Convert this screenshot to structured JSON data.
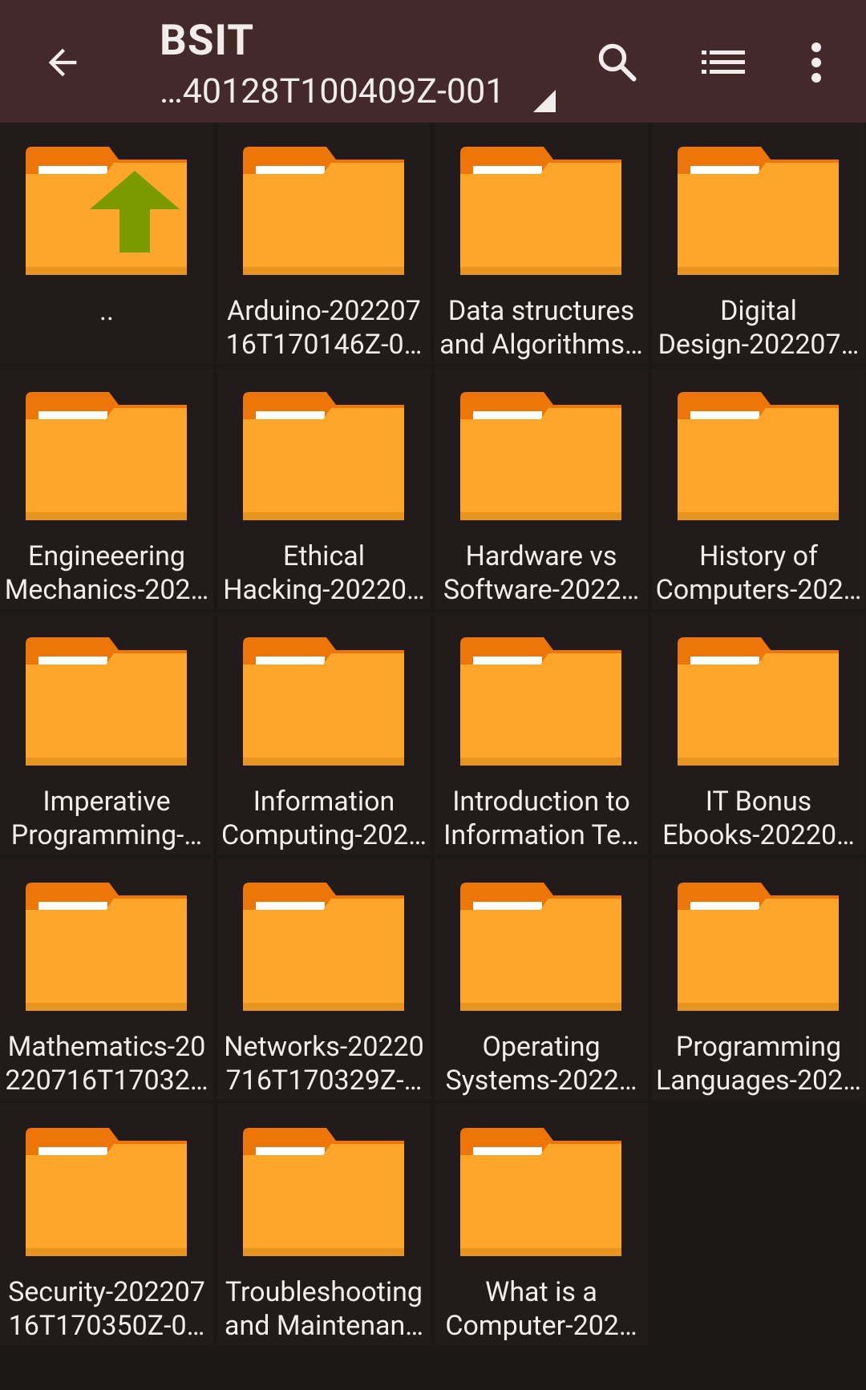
{
  "app_bar": {
    "title": "BSIT",
    "subtitle": "…40128T100409Z-001",
    "back_icon": "arrow-back-icon",
    "search_icon": "search-icon",
    "view_icon": "list-view-icon",
    "more_icon": "more-vert-icon"
  },
  "colors": {
    "app_bar_bg": "#43292a",
    "page_bg": "#1c1818",
    "tile_bg": "#221b1b",
    "folder_body": "#fda62a",
    "folder_tab": "#ee7508",
    "folder_bottom": "#e8951f",
    "up_arrow": "#7a9a01",
    "text": "#f3ecec"
  },
  "folders": [
    {
      "line1": "..",
      "line2": "",
      "up": true
    },
    {
      "line1": "Arduino-202207",
      "line2": "16T170146Z-0…"
    },
    {
      "line1": "Data structures",
      "line2": "and Algorithms…"
    },
    {
      "line1": "Digital",
      "line2": "Design-202207…"
    },
    {
      "line1": "Engineeering",
      "line2": "Mechanics-202…"
    },
    {
      "line1": "Ethical",
      "line2": "Hacking-20220…"
    },
    {
      "line1": "Hardware vs",
      "line2": "Software-2022…"
    },
    {
      "line1": "History of",
      "line2": "Computers-202…"
    },
    {
      "line1": "Imperative",
      "line2": "Programming-…"
    },
    {
      "line1": "Information",
      "line2": "Computing-202…"
    },
    {
      "line1": "Introduction to",
      "line2": "Information Te…"
    },
    {
      "line1": "IT Bonus",
      "line2": "Ebooks-20220…"
    },
    {
      "line1": "Mathematics-20",
      "line2": "220716T17032…"
    },
    {
      "line1": "Networks-20220",
      "line2": "716T170329Z-…"
    },
    {
      "line1": "Operating",
      "line2": "Systems-2022…"
    },
    {
      "line1": "Programming",
      "line2": "Languages-202…"
    },
    {
      "line1": "Security-202207",
      "line2": "16T170350Z-0…"
    },
    {
      "line1": "Troubleshooting",
      "line2": "and Maintenan…"
    },
    {
      "line1": "What is a",
      "line2": "Computer-202…"
    }
  ]
}
